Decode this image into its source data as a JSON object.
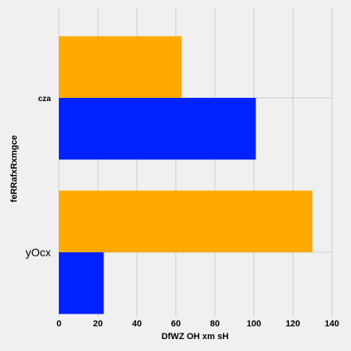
{
  "chart_data": {
    "type": "bar",
    "orientation": "horizontal",
    "categories": [
      "yOcx",
      "cza"
    ],
    "series": [
      {
        "values": [
          23,
          101
        ],
        "color": "#0022ff"
      },
      {
        "values": [
          130,
          63
        ],
        "color": "#ffaa00"
      }
    ],
    "xlabel": "DfWZ OH xm sH",
    "ylabel": "feRRafxRxmgce",
    "xlim": [
      0,
      140
    ],
    "xticks": [
      0,
      20,
      40,
      60,
      80,
      100,
      120,
      140
    ],
    "grid": true
  }
}
